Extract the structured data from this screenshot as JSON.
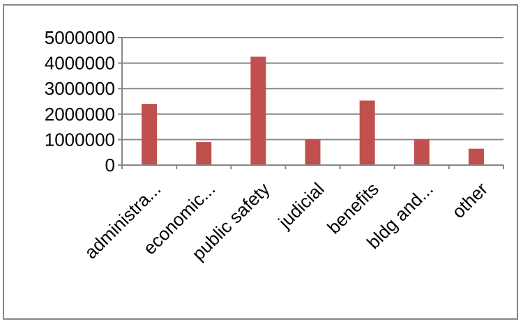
{
  "chart_data": {
    "type": "bar",
    "categories": [
      "administra...",
      "economic...",
      "public safety",
      "judicial",
      "benefits",
      "bldg and...",
      "other"
    ],
    "series": [
      {
        "values": [
          2400000,
          900000,
          4250000,
          1020000,
          2530000,
          1020000,
          640000
        ]
      }
    ],
    "title": "",
    "xlabel": "",
    "ylabel": "",
    "ylim": [
      0,
      5000000
    ],
    "yticks": [
      "0",
      "1000000",
      "2000000",
      "3000000",
      "4000000",
      "5000000"
    ],
    "grid": "horizontal",
    "legend": "none",
    "colors": {
      "bar": "#c0504d",
      "grid": "#878787",
      "frame": "#878787"
    }
  }
}
